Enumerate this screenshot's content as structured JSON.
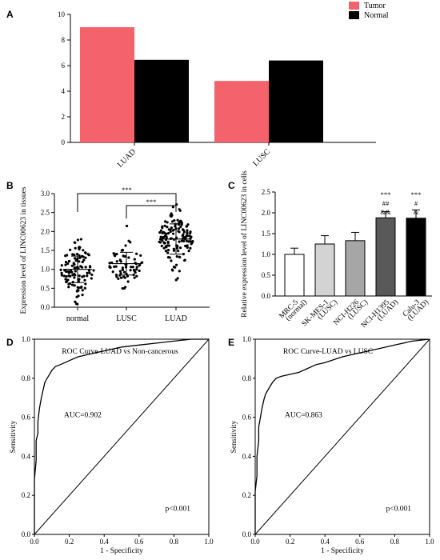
{
  "panels": {
    "A": "A",
    "B": "B",
    "C": "C",
    "D": "D",
    "E": "E"
  },
  "colors": {
    "tumor": "#f4636b",
    "normal": "#000000",
    "c_bars": [
      "#ffffff",
      "#d3d3d3",
      "#a6a6a6",
      "#595959",
      "#000000"
    ]
  },
  "chart_data": [
    {
      "id": "A",
      "type": "bar",
      "categories": [
        "LUAD",
        "LUSC"
      ],
      "series": [
        {
          "name": "Tumor",
          "values": [
            9.0,
            4.8
          ]
        },
        {
          "name": "Normal",
          "values": [
            6.45,
            6.4
          ]
        }
      ],
      "ylim": [
        0,
        10
      ],
      "yticks": [
        0,
        2,
        4,
        6,
        8,
        10
      ],
      "legend": "top-right"
    },
    {
      "id": "B",
      "type": "scatter",
      "categories": [
        "normal",
        "LUSC",
        "LUAD"
      ],
      "ylabel": "Expression level of LINC00623 in tissues",
      "ylim": [
        0,
        3.0
      ],
      "yticks": [
        "0.0",
        "0.5",
        "1.0",
        "1.5",
        "2.0",
        "2.5",
        "3.0"
      ],
      "means": [
        1.0,
        1.15,
        1.8
      ],
      "sd": [
        0.35,
        0.3,
        0.4
      ],
      "counts": [
        110,
        70,
        140
      ],
      "significance": [
        {
          "from": "normal",
          "to": "LUAD",
          "label": "***"
        },
        {
          "from": "LUSC",
          "to": "LUAD",
          "label": "***"
        }
      ]
    },
    {
      "id": "C",
      "type": "bar",
      "categories": [
        "MRC-5 (normal)",
        "SK-MES-1 (LUSC)",
        "NCI-H226 (LUSC)",
        "NCI-H1395 (LUAD)",
        "Calu-3 (LUAD)"
      ],
      "category_lines": [
        [
          "MRC-5",
          "(normal)"
        ],
        [
          "SK-MES-1",
          "(LUSC)"
        ],
        [
          "NCI-H226",
          "(LUSC)"
        ],
        [
          "NCI-H1395",
          "(LUAD)"
        ],
        [
          "Calu-3",
          "(LUAD)"
        ]
      ],
      "values": [
        1.0,
        1.25,
        1.33,
        1.88,
        1.87
      ],
      "errors": [
        0.15,
        0.2,
        0.2,
        0.15,
        0.2
      ],
      "ylabel": "Relative expression level of LINC00623 in cells",
      "ylim": [
        0,
        2.5
      ],
      "yticks": [
        "0.0",
        "0.5",
        "1.0",
        "1.5",
        "2.0",
        "2.5"
      ],
      "annotations": [
        [],
        [],
        [],
        [
          "***",
          "##",
          "&&"
        ],
        [
          "***",
          "#",
          "&"
        ]
      ]
    },
    {
      "id": "D",
      "type": "line",
      "title": "ROC Curve-LUAD vs Non-cancerous",
      "xlabel": "1 - Specificity",
      "ylabel": "Sensitivity",
      "xlim": [
        0,
        1
      ],
      "ylim": [
        0,
        1
      ],
      "ticks": [
        "0.0",
        "0.2",
        "0.4",
        "0.6",
        "0.8",
        "1.0"
      ],
      "auc_label": "AUC=0.902",
      "p_label": "p<0.001",
      "x": [
        0,
        0,
        0.01,
        0.01,
        0.02,
        0.02,
        0.03,
        0.04,
        0.05,
        0.06,
        0.08,
        0.1,
        0.12,
        0.15,
        0.2,
        0.25,
        0.3,
        0.4,
        0.5,
        0.6,
        0.7,
        0.8,
        0.9,
        1.0
      ],
      "y": [
        0,
        0.28,
        0.38,
        0.48,
        0.52,
        0.58,
        0.65,
        0.7,
        0.74,
        0.78,
        0.81,
        0.84,
        0.86,
        0.87,
        0.89,
        0.91,
        0.92,
        0.94,
        0.96,
        0.97,
        0.98,
        0.99,
        1.0,
        1.0
      ]
    },
    {
      "id": "E",
      "type": "line",
      "title": "ROC Curve-LUAD vs LUSC",
      "xlabel": "1 - Specificity",
      "ylabel": "Sensitivity",
      "xlim": [
        0,
        1
      ],
      "ylim": [
        0,
        1
      ],
      "ticks": [
        "0.0",
        "0.2",
        "0.4",
        "0.6",
        "0.8",
        "1.0"
      ],
      "auc_label": "AUC=0.863",
      "p_label": "p<0.001",
      "x": [
        0,
        0,
        0.01,
        0.01,
        0.02,
        0.02,
        0.03,
        0.04,
        0.05,
        0.06,
        0.08,
        0.1,
        0.12,
        0.15,
        0.2,
        0.25,
        0.3,
        0.35,
        0.4,
        0.5,
        0.6,
        0.7,
        0.8,
        0.9,
        1.0
      ],
      "y": [
        0,
        0.22,
        0.3,
        0.4,
        0.48,
        0.55,
        0.6,
        0.65,
        0.69,
        0.72,
        0.75,
        0.78,
        0.8,
        0.81,
        0.82,
        0.83,
        0.85,
        0.87,
        0.88,
        0.91,
        0.93,
        0.95,
        0.97,
        0.99,
        1.0
      ]
    }
  ]
}
